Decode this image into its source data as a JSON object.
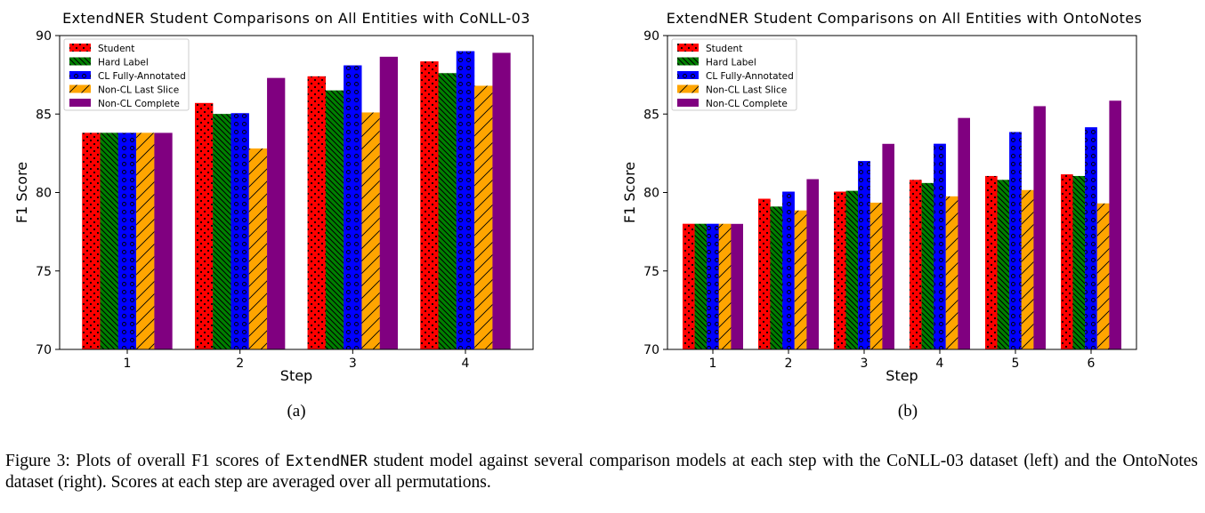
{
  "chart_data": [
    {
      "type": "bar",
      "title": "ExtendNER Student Comparisons on All Entities with CoNLL-03",
      "xlabel": "Step",
      "ylabel": "F1 Score",
      "ylim": [
        70,
        90
      ],
      "yticks": [
        "70",
        "75",
        "80",
        "85",
        "90"
      ],
      "categories": [
        "1",
        "2",
        "3",
        "4"
      ],
      "legend_position": "upper-left",
      "series": [
        {
          "name": "Student",
          "color": "#ff0000",
          "pattern": "dots",
          "values": [
            83.8,
            85.7,
            87.4,
            88.35
          ]
        },
        {
          "name": "Hard Label",
          "color": "#008000",
          "pattern": "backslash",
          "values": [
            83.8,
            85.0,
            86.5,
            87.6
          ]
        },
        {
          "name": "CL Fully-Annotated",
          "color": "#0000ff",
          "pattern": "circles",
          "values": [
            83.8,
            85.05,
            88.1,
            89.0
          ]
        },
        {
          "name": "Non-CL Last Slice",
          "color": "#ffa500",
          "pattern": "slash",
          "values": [
            83.8,
            82.8,
            85.1,
            86.8
          ]
        },
        {
          "name": "Non-CL Complete",
          "color": "#800080",
          "pattern": "none",
          "values": [
            83.8,
            87.3,
            88.65,
            88.9
          ]
        }
      ]
    },
    {
      "type": "bar",
      "title": "ExtendNER Student Comparisons on All Entities with OntoNotes",
      "xlabel": "Step",
      "ylabel": "F1 Score",
      "ylim": [
        70,
        90
      ],
      "yticks": [
        "70",
        "75",
        "80",
        "85",
        "90"
      ],
      "categories": [
        "1",
        "2",
        "3",
        "4",
        "5",
        "6"
      ],
      "legend_position": "upper-left",
      "series": [
        {
          "name": "Student",
          "color": "#ff0000",
          "pattern": "dots",
          "values": [
            78.0,
            79.6,
            80.05,
            80.8,
            81.05,
            81.15
          ]
        },
        {
          "name": "Hard Label",
          "color": "#008000",
          "pattern": "backslash",
          "values": [
            78.0,
            79.1,
            80.1,
            80.6,
            80.8,
            81.05
          ]
        },
        {
          "name": "CL Fully-Annotated",
          "color": "#0000ff",
          "pattern": "circles",
          "values": [
            78.0,
            80.05,
            82.0,
            83.1,
            83.85,
            84.15
          ]
        },
        {
          "name": "Non-CL Last Slice",
          "color": "#ffa500",
          "pattern": "slash",
          "values": [
            78.0,
            78.85,
            79.35,
            79.75,
            80.15,
            79.3
          ]
        },
        {
          "name": "Non-CL Complete",
          "color": "#800080",
          "pattern": "none",
          "values": [
            78.0,
            80.85,
            83.1,
            84.75,
            85.5,
            85.85
          ]
        }
      ]
    }
  ],
  "subfigure_labels": [
    "(a)",
    "(b)"
  ],
  "caption": {
    "prefix": "Figure 3: Plots of overall F1 scores of ",
    "model_name": "ExtendNER",
    "rest": " student model against several comparison models at each step with the CoNLL-03 dataset (left) and the OntoNotes dataset (right). Scores at each step are averaged over all permutations."
  }
}
